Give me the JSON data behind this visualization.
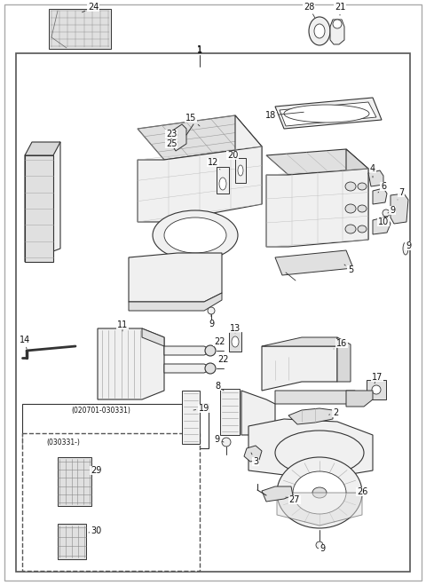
{
  "figsize": [
    4.8,
    6.59
  ],
  "dpi": 100,
  "bg": "#ffffff",
  "lc": "#333333",
  "fc": "#f0f0f0",
  "fc2": "#e0e0e0",
  "fc3": "#d8d8d8"
}
